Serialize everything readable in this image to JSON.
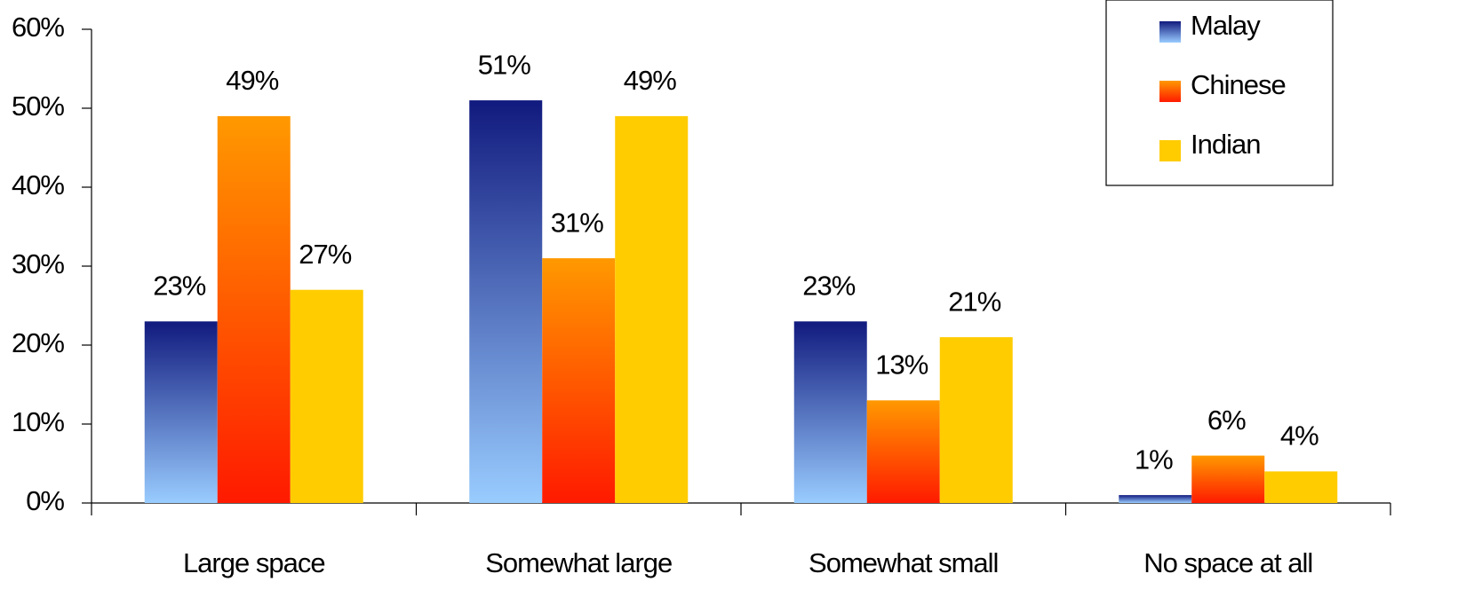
{
  "chart_data": {
    "type": "bar",
    "categories": [
      "Large space",
      "Somewhat large",
      "Somewhat small",
      "No space at all"
    ],
    "series": [
      {
        "name": "Malay",
        "color": "#111a7e",
        "gradient_to": "#99ccff",
        "values": [
          23,
          51,
          23,
          1
        ],
        "value_labels": [
          "23%",
          "51%",
          "23%",
          "1%"
        ]
      },
      {
        "name": "Chinese",
        "color": "#ff9900",
        "gradient_to": "#ff1a00",
        "values": [
          49,
          31,
          13,
          6
        ],
        "value_labels": [
          "49%",
          "31%",
          "13%",
          "6%"
        ]
      },
      {
        "name": "Indian",
        "color": "#ffcc00",
        "gradient_to": "#ffcc00",
        "values": [
          27,
          49,
          21,
          4
        ],
        "value_labels": [
          "27%",
          "49%",
          "21%",
          "4%"
        ]
      }
    ],
    "ylim": [
      0,
      60
    ],
    "yticks": [
      {
        "value": 0,
        "label": "0%"
      },
      {
        "value": 10,
        "label": "10%"
      },
      {
        "value": 20,
        "label": "20%"
      },
      {
        "value": 30,
        "label": "30%"
      },
      {
        "value": 40,
        "label": "40%"
      },
      {
        "value": 50,
        "label": "50%"
      },
      {
        "value": 60,
        "label": "60%"
      }
    ],
    "legend": "top-right",
    "grid": false
  }
}
